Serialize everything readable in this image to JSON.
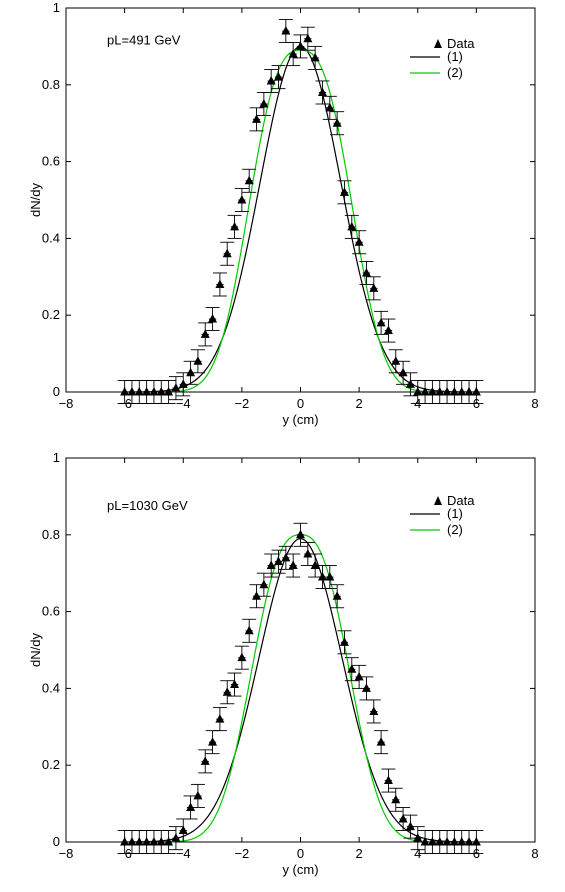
{
  "chart_data": [
    {
      "type": "line",
      "annotation": "pL=491 GeV",
      "xlabel": "y (cm)",
      "ylabel": "dN/dy",
      "xlim": [
        -8,
        8
      ],
      "ylim": [
        0,
        1
      ],
      "x_ticks": [
        -8,
        -6,
        -4,
        -2,
        0,
        2,
        4,
        6,
        8
      ],
      "x_tick_labels": [
        "−8",
        "−6",
        "−4",
        "−2",
        "0",
        "2",
        "4",
        "6",
        "8"
      ],
      "y_ticks": [
        0,
        0.2,
        0.4,
        0.6,
        0.8,
        1
      ],
      "y_tick_labels": [
        "0",
        "0.2",
        "0.4",
        "0.6",
        "0.8",
        "1"
      ],
      "grid": false,
      "legend_placement": "top-right",
      "series": [
        {
          "name": "Data",
          "kind": "points-with-errors",
          "color": "#000000",
          "x": [
            -6.0,
            -5.75,
            -5.5,
            -5.25,
            -5.0,
            -4.75,
            -4.5,
            -4.25,
            -4.0,
            -3.75,
            -3.5,
            -3.25,
            -3.0,
            -2.75,
            -2.5,
            -2.25,
            -2.0,
            -1.75,
            -1.5,
            -1.25,
            -1.0,
            -0.75,
            -0.5,
            -0.25,
            0.0,
            0.25,
            0.5,
            0.75,
            1.0,
            1.25,
            1.5,
            1.75,
            2.0,
            2.25,
            2.5,
            2.75,
            3.0,
            3.25,
            3.5,
            3.75,
            4.0,
            4.25,
            4.5,
            4.75,
            5.0,
            5.25,
            5.5,
            5.75,
            6.0
          ],
          "y": [
            0.0,
            0.0,
            0.0,
            0.0,
            0.0,
            0.0,
            0.0,
            0.01,
            0.02,
            0.05,
            0.08,
            0.15,
            0.19,
            0.28,
            0.36,
            0.43,
            0.5,
            0.55,
            0.71,
            0.75,
            0.81,
            0.82,
            0.94,
            0.88,
            0.9,
            0.92,
            0.87,
            0.78,
            0.74,
            0.7,
            0.52,
            0.43,
            0.39,
            0.31,
            0.27,
            0.18,
            0.16,
            0.08,
            0.05,
            0.02,
            0.0,
            0.0,
            0.0,
            0.0,
            0.0,
            0.0,
            0.0,
            0.0,
            0.0
          ],
          "yerr": 0.03,
          "xerr": 0.25
        },
        {
          "name": "(1)",
          "kind": "curve",
          "color": "#000000",
          "center": 0,
          "amplitude": 0.9,
          "gauss_sigma": 1.38
        },
        {
          "name": "(2)",
          "kind": "curve",
          "color": "#00cc00",
          "center": 0,
          "amplitude": 0.89,
          "flat_top_halfwidth": 2.12,
          "flat_top_power": 2.7
        }
      ]
    },
    {
      "type": "line",
      "annotation": "pL=1030 GeV",
      "xlabel": "y (cm)",
      "ylabel": "dN/dy",
      "xlim": [
        -8,
        8
      ],
      "ylim": [
        0,
        1
      ],
      "x_ticks": [
        -8,
        -6,
        -4,
        -2,
        0,
        2,
        4,
        6,
        8
      ],
      "x_tick_labels": [
        "−8",
        "−6",
        "−4",
        "−2",
        "0",
        "2",
        "4",
        "6",
        "8"
      ],
      "y_ticks": [
        0,
        0.2,
        0.4,
        0.6,
        0.8,
        1
      ],
      "y_tick_labels": [
        "0",
        "0.2",
        "0.4",
        "0.6",
        "0.8",
        "1"
      ],
      "grid": false,
      "legend_placement": "top-right",
      "series": [
        {
          "name": "Data",
          "kind": "points-with-errors",
          "color": "#000000",
          "x": [
            -6.0,
            -5.75,
            -5.5,
            -5.25,
            -5.0,
            -4.75,
            -4.5,
            -4.25,
            -4.0,
            -3.75,
            -3.5,
            -3.25,
            -3.0,
            -2.75,
            -2.5,
            -2.25,
            -2.0,
            -1.75,
            -1.5,
            -1.25,
            -1.0,
            -0.75,
            -0.5,
            -0.25,
            0.0,
            0.25,
            0.5,
            0.75,
            1.0,
            1.25,
            1.5,
            1.75,
            2.0,
            2.25,
            2.5,
            2.75,
            3.0,
            3.25,
            3.5,
            3.75,
            4.0,
            4.25,
            4.5,
            4.75,
            5.0,
            5.25,
            5.5,
            5.75,
            6.0
          ],
          "y": [
            0.0,
            0.0,
            0.0,
            0.0,
            0.0,
            0.0,
            0.0,
            0.01,
            0.03,
            0.09,
            0.12,
            0.21,
            0.26,
            0.32,
            0.39,
            0.41,
            0.48,
            0.55,
            0.64,
            0.67,
            0.72,
            0.73,
            0.74,
            0.72,
            0.8,
            0.75,
            0.72,
            0.69,
            0.69,
            0.64,
            0.52,
            0.45,
            0.43,
            0.4,
            0.34,
            0.26,
            0.16,
            0.11,
            0.06,
            0.04,
            0.01,
            0.0,
            0.0,
            0.0,
            0.0,
            0.0,
            0.0,
            0.0,
            0.0
          ],
          "yerr": 0.03,
          "xerr": 0.25
        },
        {
          "name": "(1)",
          "kind": "curve",
          "color": "#000000",
          "center": 0,
          "amplitude": 0.79,
          "gauss_sigma": 1.42
        },
        {
          "name": "(2)",
          "kind": "curve",
          "color": "#00cc00",
          "center": 0,
          "amplitude": 0.8,
          "flat_top_halfwidth": 2.05,
          "flat_top_power": 2.6
        }
      ]
    }
  ]
}
